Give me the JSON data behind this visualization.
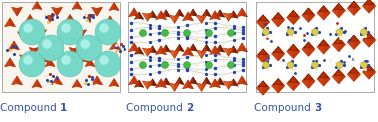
{
  "background_color": "#ffffff",
  "compounds": [
    "Compound 1",
    "Compound 2",
    "Compound 3"
  ],
  "label_color": "#3355aa",
  "label_fontsize": 7.5,
  "figsize": [
    3.78,
    1.22
  ],
  "dpi": 100,
  "teal_color": "#78d8c8",
  "teal_edge": "#40b8a8",
  "orange_dark": "#b83000",
  "orange_mid": "#d04010",
  "orange_light": "#e86020",
  "blue_atom": "#2244aa",
  "green_atom": "#44bb44",
  "red_atom": "#cc2200",
  "white_atom": "#eeeecc",
  "yellow_atom": "#ddcc44"
}
